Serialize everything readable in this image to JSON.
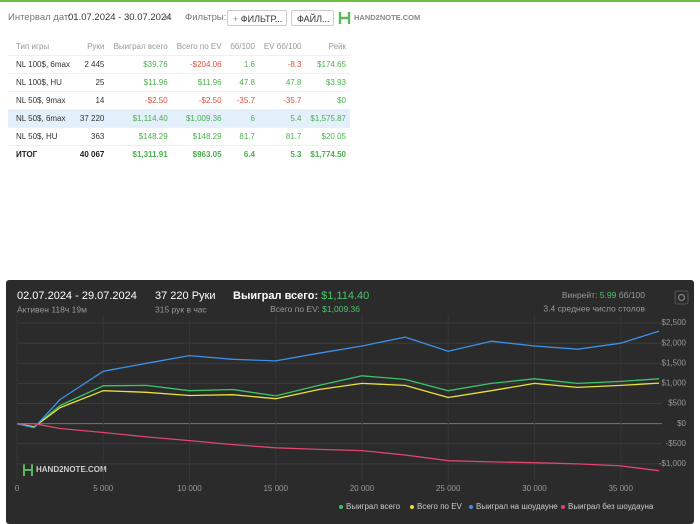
{
  "toolbar": {
    "date_label": "Интервал дат:",
    "date_range": "01.07.2024 - 30.07.2024",
    "filters_label": "Фильтры:",
    "filter_button": "ФИЛЬТР...",
    "file_button": "ФАЙЛ...",
    "brand": "HAND2NOTE.COM"
  },
  "table": {
    "columns": [
      "Тип игры",
      "Руки",
      "Выиграл всего",
      "Всего по EV",
      "бб/100",
      "EV бб/100",
      "Рейк"
    ],
    "rows": [
      [
        "NL 100$, 6max",
        "2 445",
        "$39.76",
        "-$204.06",
        "1.6",
        "-8.3",
        "$174.65"
      ],
      [
        "NL 100$, HU",
        "25",
        "$11.96",
        "$11.96",
        "47.8",
        "47.8",
        "$3.93"
      ],
      [
        "NL 50$, 9max",
        "14",
        "-$2.50",
        "-$2.50",
        "-35.7",
        "-35.7",
        "$0"
      ],
      [
        "NL 50$, 6max",
        "37 220",
        "$1,114.40",
        "$1,009.36",
        "6",
        "5.4",
        "$1,575.87"
      ],
      [
        "NL 50$, HU",
        "363",
        "$148.29",
        "$148.29",
        "81.7",
        "81.7",
        "$20.05"
      ]
    ],
    "total": [
      "ИТОГ",
      "40 067",
      "$1,311.91",
      "$963.05",
      "6.4",
      "5.3",
      "$1,774.50"
    ]
  },
  "summary": {
    "period": "02.07.2024 - 29.07.2024",
    "active": "Активен 118ч 19м",
    "hands": "37 220 Руки",
    "rate": "315 рук в час",
    "won_label": "Выиграл всего:",
    "won_value": "$1,114.40",
    "ev_label": "Всего по EV:",
    "ev_value": "$1,009.36",
    "winrate_label": "Винрейт:",
    "winrate_value": "5.99",
    "winrate_unit": "бб/100",
    "tables": "3.4 среднее число столов"
  },
  "chart": {
    "type": "line",
    "watermark": "HAND2NOTE.COM",
    "x": [
      0,
      1000,
      2500,
      5000,
      7500,
      10000,
      12500,
      15000,
      17500,
      20000,
      22500,
      25000,
      27500,
      30000,
      32500,
      35000,
      37220
    ],
    "series": [
      {
        "name": "Выиграл всего",
        "color": "#3cc46a",
        "values": [
          0,
          -80,
          450,
          940,
          950,
          820,
          850,
          690,
          950,
          1190,
          1100,
          820,
          1000,
          1115,
          1000,
          1050,
          1114
        ]
      },
      {
        "name": "Всего по EV",
        "color": "#e8e23a",
        "values": [
          0,
          -80,
          400,
          820,
          780,
          700,
          720,
          620,
          850,
          1000,
          950,
          650,
          820,
          1000,
          900,
          950,
          1009
        ]
      },
      {
        "name": "Выиграл на шоудауне",
        "color": "#3d8fe8",
        "values": [
          0,
          -100,
          600,
          1300,
          1500,
          1690,
          1600,
          1560,
          1750,
          1930,
          2150,
          1800,
          2050,
          1930,
          1850,
          2000,
          2300
        ]
      },
      {
        "name": "Выиграл без шоудауна",
        "color": "#e0456e",
        "values": [
          0,
          0,
          -120,
          -220,
          -330,
          -420,
          -520,
          -600,
          -640,
          -670,
          -780,
          -920,
          -950,
          -970,
          -1000,
          -1050,
          -1170
        ]
      }
    ],
    "xlim": [
      0,
      37220
    ],
    "ylim": [
      -1400,
      2700
    ],
    "xticks": [
      0,
      {
        "value": 5000,
        "label": "5 000"
      },
      {
        "value": 10000,
        "label": "10 000"
      },
      {
        "value": 15000,
        "label": "15 000"
      },
      {
        "value": 20000,
        "label": "20 000"
      },
      {
        "value": 25000,
        "label": "25 000"
      },
      {
        "value": 30000,
        "label": "30 000"
      },
      {
        "value": 35000,
        "label": "35 000"
      }
    ],
    "yticks": [
      {
        "value": 2500,
        "label": "$2,500"
      },
      {
        "value": 2000,
        "label": "$2,000"
      },
      {
        "value": 1500,
        "label": "$1,500"
      },
      {
        "value": 1000,
        "label": "$1,000"
      },
      {
        "value": 500,
        "label": "$500"
      },
      {
        "value": 0,
        "label": "$0"
      },
      {
        "value": -500,
        "label": "-$500"
      },
      {
        "value": -1000,
        "label": "-$1,000"
      }
    ],
    "grid": true
  }
}
